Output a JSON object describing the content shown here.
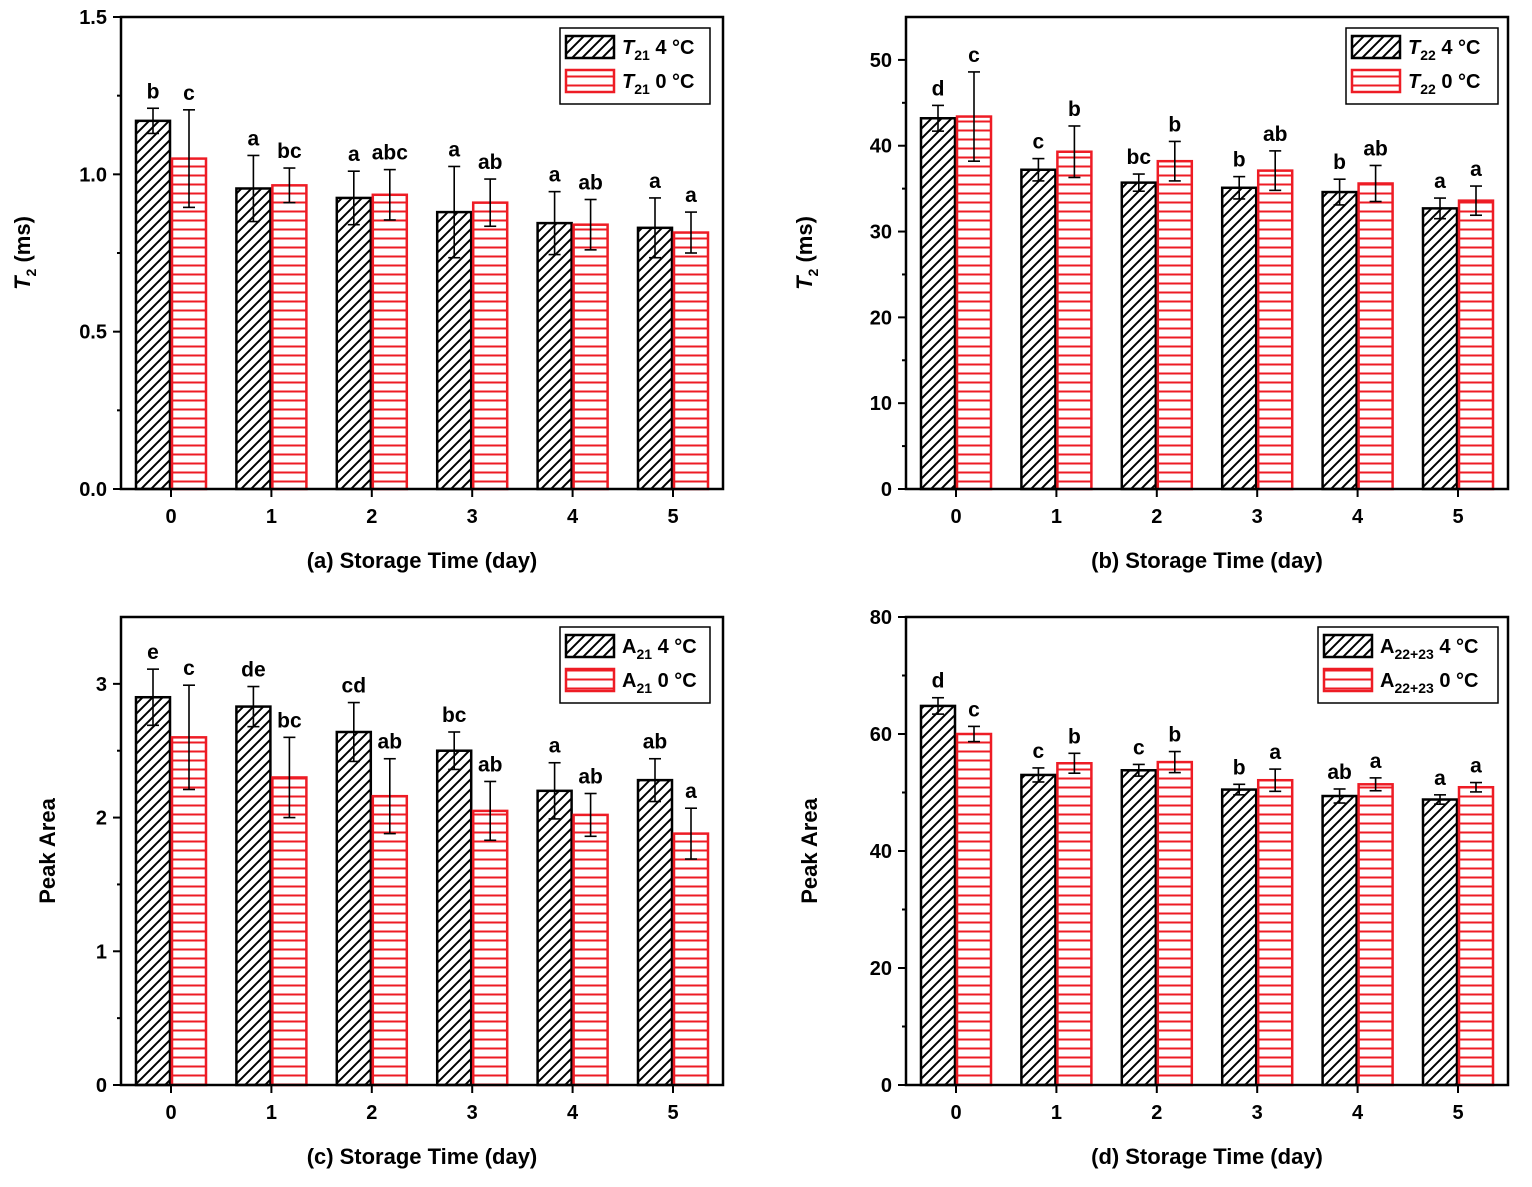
{
  "colors": {
    "series_4c": "#000000",
    "series_0c": "#ee1c25",
    "background": "#ffffff"
  },
  "chart_data": [
    {
      "id": "a",
      "type": "bar",
      "panel_label": "(a)",
      "xlabel": "Storage Time (day)",
      "ylabel_main": "T",
      "ylabel_sub": "2",
      "ylabel_rest": " (ms)",
      "categories": [
        "0",
        "1",
        "2",
        "3",
        "4",
        "5"
      ],
      "ylim": [
        0,
        1.5
      ],
      "yticks": [
        0.0,
        0.5,
        1.0,
        1.5
      ],
      "ytick_labels": [
        "0.0",
        "0.5",
        "1.0",
        "1.5"
      ],
      "series": [
        {
          "name": "4 °C",
          "legend_main": "T",
          "legend_italic": true,
          "legend_sub": "21",
          "legend_rest": " 4 °C",
          "hatch": "diagonal",
          "color": "#000000",
          "values": [
            1.17,
            0.955,
            0.925,
            0.88,
            0.845,
            0.83
          ],
          "errors": [
            0.04,
            0.105,
            0.085,
            0.145,
            0.1,
            0.095
          ],
          "letters": [
            "b",
            "a",
            "a",
            "a",
            "a",
            "a"
          ]
        },
        {
          "name": "0 °C",
          "legend_main": "T",
          "legend_italic": true,
          "legend_sub": "21",
          "legend_rest": " 0 °C",
          "hatch": "horizontal",
          "color": "#ee1c25",
          "values": [
            1.05,
            0.965,
            0.935,
            0.91,
            0.84,
            0.815
          ],
          "errors": [
            0.155,
            0.055,
            0.08,
            0.075,
            0.08,
            0.065
          ],
          "letters": [
            "c",
            "bc",
            "abc",
            "ab",
            "ab",
            "a"
          ]
        }
      ]
    },
    {
      "id": "b",
      "type": "bar",
      "panel_label": "(b)",
      "xlabel": "Storage Time (day)",
      "ylabel_main": "T",
      "ylabel_sub": "2",
      "ylabel_rest": " (ms)",
      "categories": [
        "0",
        "1",
        "2",
        "3",
        "4",
        "5"
      ],
      "ylim": [
        0,
        55
      ],
      "yticks": [
        0,
        10,
        20,
        30,
        40,
        50
      ],
      "ytick_labels": [
        "0",
        "10",
        "20",
        "30",
        "40",
        "50"
      ],
      "series": [
        {
          "name": "4 °C",
          "legend_main": "T",
          "legend_italic": true,
          "legend_sub": "22",
          "legend_rest": " 4 °C",
          "hatch": "diagonal",
          "color": "#000000",
          "values": [
            43.2,
            37.2,
            35.7,
            35.1,
            34.6,
            32.7
          ],
          "errors": [
            1.5,
            1.3,
            1.0,
            1.3,
            1.5,
            1.2
          ],
          "letters": [
            "d",
            "c",
            "bc",
            "b",
            "b",
            "a"
          ]
        },
        {
          "name": "0 °C",
          "legend_main": "T",
          "legend_italic": true,
          "legend_sub": "22",
          "legend_rest": " 0 °C",
          "hatch": "horizontal",
          "color": "#ee1c25",
          "values": [
            43.4,
            39.3,
            38.2,
            37.1,
            35.6,
            33.6
          ],
          "errors": [
            5.2,
            3.0,
            2.3,
            2.3,
            2.1,
            1.7
          ],
          "letters": [
            "c",
            "b",
            "b",
            "ab",
            "ab",
            "a"
          ]
        }
      ]
    },
    {
      "id": "c",
      "type": "bar",
      "panel_label": "(c)",
      "xlabel": "Storage Time (day)",
      "ylabel_main": "Peak Area",
      "ylabel_sub": "",
      "ylabel_rest": "",
      "categories": [
        "0",
        "1",
        "2",
        "3",
        "4",
        "5"
      ],
      "ylim": [
        0,
        3.5
      ],
      "yticks": [
        0,
        1,
        2,
        3
      ],
      "ytick_labels": [
        "0",
        "1",
        "2",
        "3"
      ],
      "series": [
        {
          "name": "4 °C",
          "legend_main": "A",
          "legend_italic": false,
          "legend_sub": "21",
          "legend_rest": " 4 °C",
          "hatch": "diagonal",
          "color": "#000000",
          "values": [
            2.9,
            2.83,
            2.64,
            2.5,
            2.2,
            2.28
          ],
          "errors": [
            0.21,
            0.15,
            0.22,
            0.14,
            0.21,
            0.16
          ],
          "letters": [
            "e",
            "de",
            "cd",
            "bc",
            "a",
            "ab"
          ]
        },
        {
          "name": "0 °C",
          "legend_main": "A",
          "legend_italic": false,
          "legend_sub": "21",
          "legend_rest": " 0 °C",
          "hatch": "horizontal",
          "color": "#ee1c25",
          "values": [
            2.6,
            2.3,
            2.16,
            2.05,
            2.02,
            1.88
          ],
          "errors": [
            0.39,
            0.3,
            0.28,
            0.22,
            0.16,
            0.19
          ],
          "letters": [
            "c",
            "bc",
            "ab",
            "ab",
            "ab",
            "a"
          ]
        }
      ]
    },
    {
      "id": "d",
      "type": "bar",
      "panel_label": "(d)",
      "xlabel": "Storage Time (day)",
      "ylabel_main": "Peak Area",
      "ylabel_sub": "",
      "ylabel_rest": "",
      "categories": [
        "0",
        "1",
        "2",
        "3",
        "4",
        "5"
      ],
      "ylim": [
        0,
        80
      ],
      "yticks": [
        0,
        20,
        40,
        60,
        80
      ],
      "ytick_labels": [
        "0",
        "20",
        "40",
        "60",
        "80"
      ],
      "series": [
        {
          "name": "4 °C",
          "legend_main": "A",
          "legend_italic": false,
          "legend_sub": "22+23",
          "legend_rest": " 4 °C",
          "hatch": "diagonal",
          "color": "#000000",
          "values": [
            64.8,
            53.0,
            53.8,
            50.5,
            49.4,
            48.8
          ],
          "errors": [
            1.4,
            1.2,
            1.0,
            0.9,
            1.2,
            0.8
          ],
          "letters": [
            "d",
            "c",
            "c",
            "b",
            "ab",
            "a"
          ]
        },
        {
          "name": "0 °C",
          "legend_main": "A",
          "legend_italic": false,
          "legend_sub": "22+23",
          "legend_rest": " 0 °C",
          "hatch": "horizontal",
          "color": "#ee1c25",
          "values": [
            60.0,
            55.0,
            55.2,
            52.1,
            51.4,
            50.9
          ],
          "errors": [
            1.3,
            1.7,
            1.8,
            1.9,
            1.1,
            0.8
          ],
          "letters": [
            "c",
            "b",
            "b",
            "a",
            "a",
            "a"
          ]
        }
      ]
    }
  ]
}
